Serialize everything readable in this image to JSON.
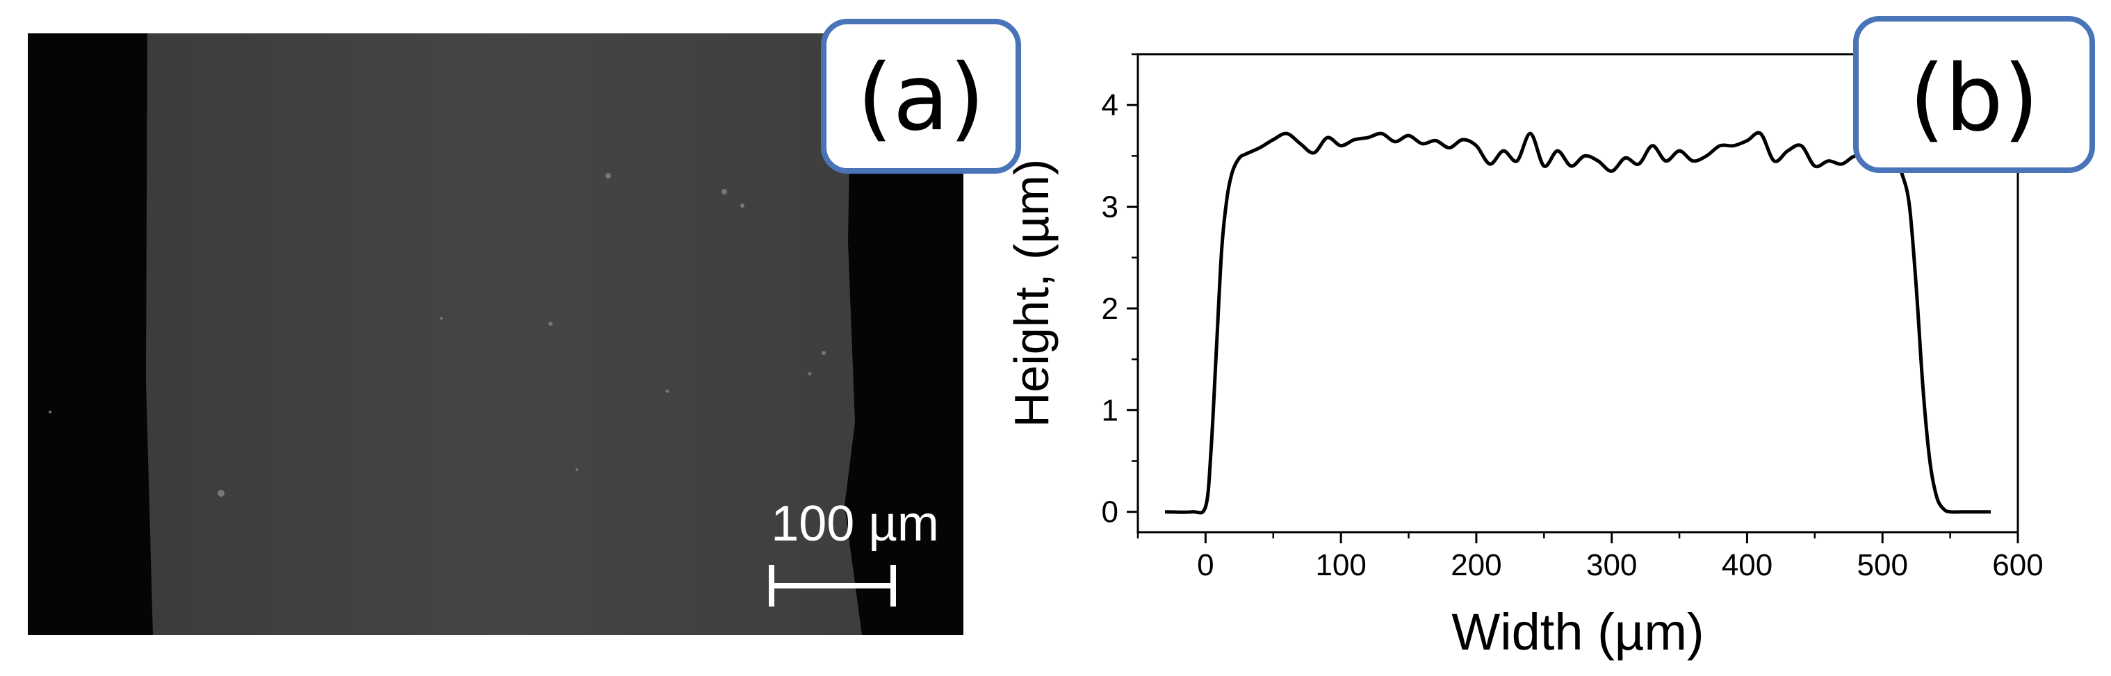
{
  "panel_a": {
    "label": "(a)",
    "scale_bar_label": "100 µm",
    "scale_bar_length_um": 100
  },
  "panel_b": {
    "label": "(b)"
  },
  "chart_data": {
    "type": "line",
    "title": "",
    "xlabel": "Width (µm)",
    "ylabel": "Height, (µm)",
    "xlim": [
      -50,
      600
    ],
    "ylim": [
      -0.2,
      4.5
    ],
    "xticks": [
      0,
      100,
      200,
      300,
      400,
      500,
      600
    ],
    "yticks": [
      0,
      1,
      2,
      3,
      4
    ],
    "grid": false,
    "legend": "none",
    "line_color": "#000000",
    "series": [
      {
        "x": [
          -30,
          -10,
          0,
          4,
          8,
          12,
          16,
          20,
          25,
          30,
          40,
          50,
          60,
          70,
          80,
          90,
          100,
          110,
          120,
          130,
          140,
          150,
          160,
          170,
          180,
          190,
          200,
          210,
          220,
          230,
          240,
          250,
          260,
          270,
          280,
          290,
          300,
          310,
          320,
          330,
          340,
          350,
          360,
          370,
          380,
          390,
          400,
          410,
          420,
          430,
          440,
          450,
          460,
          470,
          480,
          490,
          500,
          510,
          515,
          520,
          525,
          530,
          535,
          540,
          545,
          550,
          560,
          580
        ],
        "y": [
          0,
          0,
          0.05,
          0.6,
          1.6,
          2.6,
          3.1,
          3.35,
          3.48,
          3.52,
          3.58,
          3.66,
          3.72,
          3.62,
          3.53,
          3.68,
          3.6,
          3.66,
          3.68,
          3.72,
          3.64,
          3.7,
          3.62,
          3.65,
          3.58,
          3.66,
          3.6,
          3.42,
          3.55,
          3.45,
          3.72,
          3.4,
          3.55,
          3.4,
          3.5,
          3.45,
          3.35,
          3.48,
          3.42,
          3.6,
          3.45,
          3.55,
          3.45,
          3.5,
          3.6,
          3.6,
          3.65,
          3.72,
          3.45,
          3.55,
          3.6,
          3.4,
          3.45,
          3.42,
          3.5,
          3.45,
          3.48,
          3.42,
          3.3,
          3.0,
          2.2,
          1.2,
          0.5,
          0.15,
          0.03,
          0,
          0,
          0
        ]
      }
    ]
  }
}
